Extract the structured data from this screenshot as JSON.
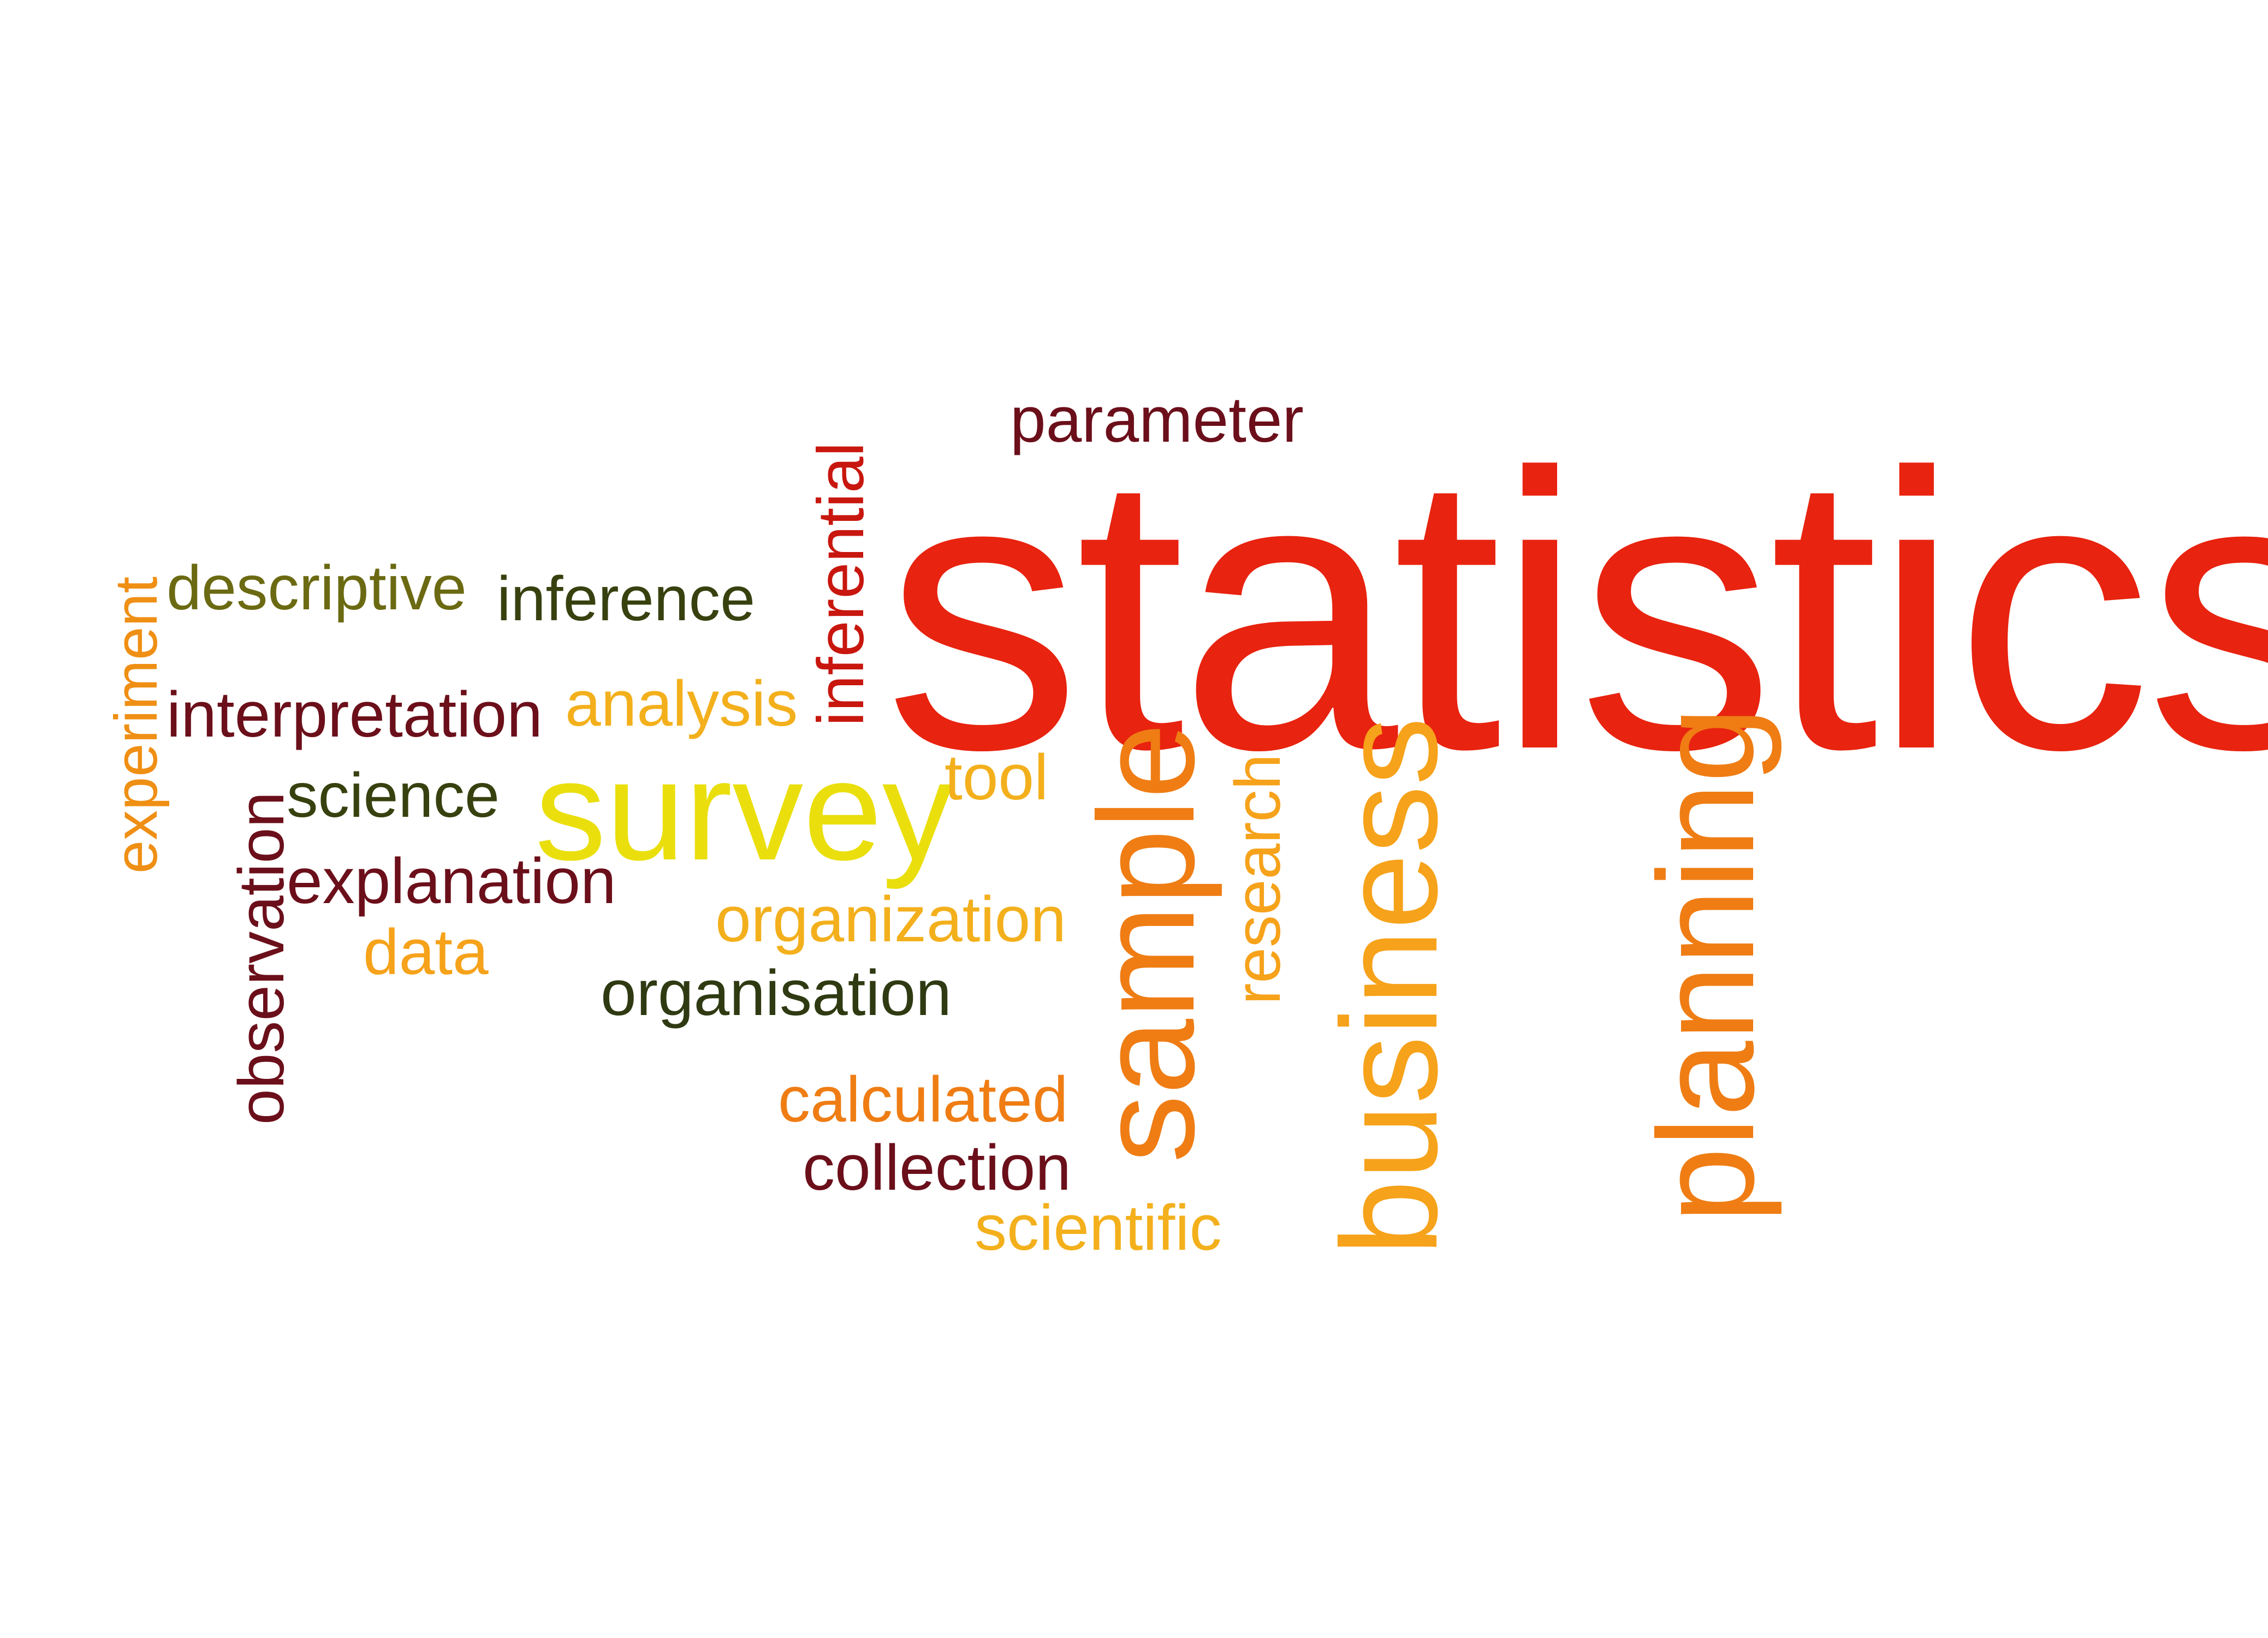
{
  "colors": {
    "background": "#ffffff",
    "red": "#e8230f",
    "dark_red": "#6b0f1a",
    "orange": "#ef7d14",
    "amber": "#f6a21a",
    "yellow_orange": "#f3b01c",
    "yellow": "#eadf0c",
    "olive": "#6b6a12",
    "dark_olive": "#37410f"
  },
  "words": [
    {
      "text": "statistics",
      "color": "#e8230f"
    },
    {
      "text": "parameter",
      "color": "#6b0f1a"
    },
    {
      "text": "inferential",
      "color": "#c8170e"
    },
    {
      "text": "descriptive",
      "color": "#6b6a12"
    },
    {
      "text": "inference",
      "color": "#37410f"
    },
    {
      "text": "experiment",
      "color": "#ef8f14"
    },
    {
      "text": "interpretation",
      "color": "#6b0f1a"
    },
    {
      "text": "analysis",
      "color": "#f3b01c"
    },
    {
      "text": "science",
      "color": "#37410f"
    },
    {
      "text": "survey",
      "color": "#eadf0c"
    },
    {
      "text": "tool",
      "color": "#f3b01c"
    },
    {
      "text": "observation",
      "color": "#6b0f1a"
    },
    {
      "text": "explanation",
      "color": "#6b0f1a"
    },
    {
      "text": "data",
      "color": "#f6a21a"
    },
    {
      "text": "organization",
      "color": "#f3b01c"
    },
    {
      "text": "organisation",
      "color": "#2f3a12"
    },
    {
      "text": "sample",
      "color": "#ef7d14"
    },
    {
      "text": "research",
      "color": "#f6a21a"
    },
    {
      "text": "business",
      "color": "#f6a21a"
    },
    {
      "text": "planning",
      "color": "#ef7d14"
    },
    {
      "text": "calculated",
      "color": "#ef7d14"
    },
    {
      "text": "collection",
      "color": "#6b0f1a"
    },
    {
      "text": "scientific",
      "color": "#f3b01c"
    }
  ]
}
